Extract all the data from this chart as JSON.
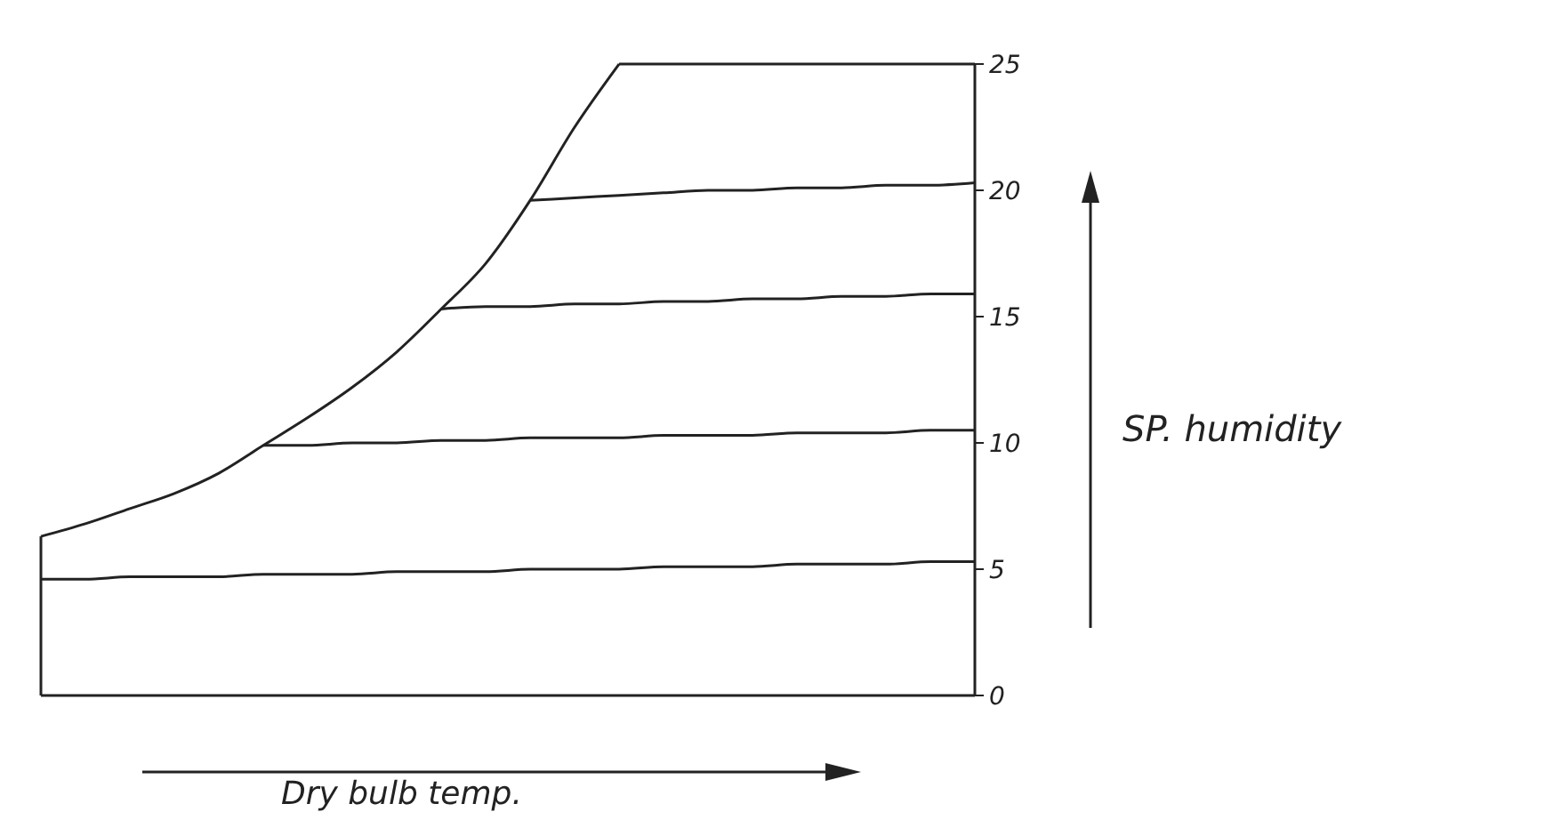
{
  "chart_data": {
    "type": "line",
    "xlabel": "Dry bulb temp.",
    "ylabel": "SP. humidity",
    "categories": [
      null,
      null,
      null,
      null,
      null,
      null,
      null,
      null,
      null,
      null,
      null,
      null,
      null,
      null,
      null,
      null,
      null,
      null,
      null,
      null,
      null,
      null
    ],
    "series": [
      {
        "color": "#222222",
        "values": [
          6.3,
          6.8,
          7.4,
          8.0,
          8.8,
          9.9,
          11.0,
          12.2,
          13.6,
          15.3,
          17.1,
          19.6,
          22.5,
          25,
          null,
          null,
          null,
          null,
          null,
          null,
          null,
          null
        ]
      },
      {
        "color": "#222222",
        "values": [
          null,
          null,
          null,
          null,
          null,
          null,
          null,
          null,
          null,
          null,
          null,
          null,
          null,
          25,
          25,
          25,
          25,
          25,
          25,
          25,
          25,
          25
        ]
      },
      {
        "color": "#222222",
        "values": [
          null,
          null,
          null,
          null,
          null,
          null,
          null,
          null,
          null,
          null,
          null,
          19.6,
          19.7,
          19.8,
          19.9,
          20.0,
          20.0,
          20.1,
          20.1,
          20.2,
          20.2,
          20.3
        ]
      },
      {
        "color": "#222222",
        "values": [
          null,
          null,
          null,
          null,
          null,
          null,
          null,
          null,
          null,
          15.3,
          15.4,
          15.4,
          15.5,
          15.5,
          15.6,
          15.6,
          15.7,
          15.7,
          15.8,
          15.8,
          15.9,
          15.9
        ]
      },
      {
        "color": "#222222",
        "values": [
          null,
          null,
          null,
          null,
          null,
          9.9,
          9.9,
          10.0,
          10.0,
          10.1,
          10.1,
          10.2,
          10.2,
          10.2,
          10.3,
          10.3,
          10.3,
          10.4,
          10.4,
          10.4,
          10.5,
          10.5
        ]
      },
      {
        "color": "#222222",
        "values": [
          4.6,
          4.6,
          4.7,
          4.7,
          4.7,
          4.8,
          4.8,
          4.8,
          4.9,
          4.9,
          4.9,
          5.0,
          5.0,
          5.0,
          5.1,
          5.1,
          5.1,
          5.2,
          5.2,
          5.2,
          5.3,
          5.3
        ]
      }
    ],
    "ylim": [
      0,
      25
    ],
    "yticks": [
      0,
      5,
      10,
      15,
      20,
      25
    ],
    "grid": false,
    "marker": "none",
    "line_style": "solid"
  }
}
